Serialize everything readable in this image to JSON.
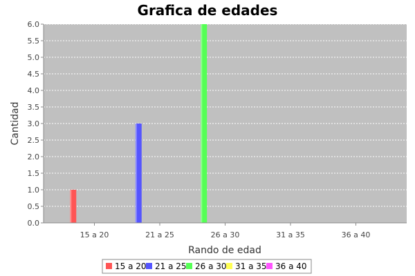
{
  "chart_data": {
    "type": "bar",
    "title": "Grafica de edades",
    "xlabel": "Rando de edad",
    "ylabel": "Cantidad",
    "categories": [
      "15 a 20",
      "21 a 25",
      "26 a 30",
      "31 a 35",
      "36 a 40"
    ],
    "series": [
      {
        "name": "15 a 20",
        "color": "#ff5555",
        "values": [
          1,
          0,
          0,
          0,
          0
        ]
      },
      {
        "name": "21 a 25",
        "color": "#5555ff",
        "values": [
          0,
          3,
          0,
          0,
          0
        ]
      },
      {
        "name": "26 a 30",
        "color": "#55ff55",
        "values": [
          0,
          0,
          6,
          0,
          0
        ]
      },
      {
        "name": "31 a 35",
        "color": "#ffff55",
        "values": [
          0,
          0,
          0,
          0,
          0
        ]
      },
      {
        "name": "36 a 40",
        "color": "#ff55ff",
        "values": [
          0,
          0,
          0,
          0,
          0
        ]
      }
    ],
    "ylim": [
      0,
      6.0
    ],
    "yticks": [
      "0.0",
      "0.5",
      "1.0",
      "1.5",
      "2.0",
      "2.5",
      "3.0",
      "3.5",
      "4.0",
      "4.5",
      "5.0",
      "5.5",
      "6.0"
    ],
    "grid": true,
    "legend_position": "bottom",
    "plot_background": "#c0c0c0",
    "grid_color": "#ffffff"
  }
}
